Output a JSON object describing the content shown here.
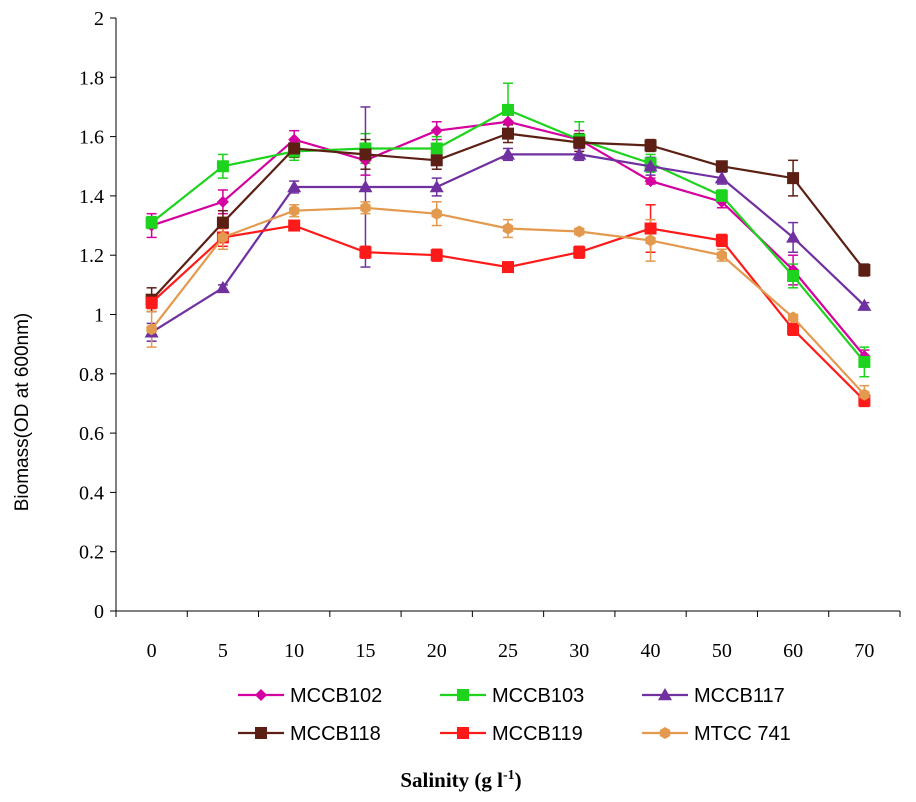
{
  "chart_data": {
    "type": "line",
    "title": "",
    "xlabel": "Salinity (g l",
    "xlabel_sup": "-1",
    "xlabel_end": ")",
    "ylabel": "Biomass(OD at 600nm)",
    "categories": [
      "0",
      "5",
      "10",
      "15",
      "20",
      "25",
      "30",
      "40",
      "50",
      "60",
      "70"
    ],
    "ylim": [
      0,
      2
    ],
    "yticks": [
      "0",
      "0.2",
      "0.4",
      "0.6",
      "0.8",
      "1",
      "1.2",
      "1.4",
      "1.6",
      "1.8",
      "2"
    ],
    "grid": false,
    "legend_position": "bottom",
    "series": [
      {
        "name": "MCCB102",
        "color": "#d4009f",
        "marker": "diamond",
        "values": [
          1.3,
          1.38,
          1.59,
          1.52,
          1.62,
          1.65,
          1.59,
          1.45,
          1.38,
          1.15,
          0.86
        ],
        "errors": [
          0.04,
          0.04,
          0.03,
          0.05,
          0.03,
          0.04,
          0.03,
          0.01,
          0.02,
          0.05,
          0.02
        ]
      },
      {
        "name": "MCCB103",
        "color": "#1ed31e",
        "marker": "square",
        "values": [
          1.31,
          1.5,
          1.55,
          1.56,
          1.56,
          1.69,
          1.59,
          1.51,
          1.4,
          1.13,
          0.84
        ],
        "errors": [
          0.02,
          0.04,
          0.03,
          0.05,
          0.04,
          0.09,
          0.06,
          0.03,
          0.02,
          0.04,
          0.05
        ]
      },
      {
        "name": "MCCB117",
        "color": "#7030a0",
        "marker": "triangle",
        "values": [
          0.94,
          1.09,
          1.43,
          1.43,
          1.43,
          1.54,
          1.54,
          1.5,
          1.46,
          1.26,
          1.03
        ],
        "errors": [
          0.03,
          0.01,
          0.02,
          0.27,
          0.03,
          0.02,
          0.02,
          0.03,
          0.02,
          0.05,
          0.01
        ]
      },
      {
        "name": "MCCB118",
        "color": "#5c1f14",
        "marker": "square",
        "values": [
          1.05,
          1.31,
          1.56,
          1.54,
          1.52,
          1.61,
          1.58,
          1.57,
          1.5,
          1.46,
          1.15
        ],
        "errors": [
          0.04,
          0.04,
          0.03,
          0.05,
          0.03,
          0.03,
          0.03,
          0.02,
          0.01,
          0.06,
          0.02
        ]
      },
      {
        "name": "MCCB119",
        "color": "#ff1a1a",
        "marker": "square",
        "values": [
          1.04,
          1.26,
          1.3,
          1.21,
          1.2,
          1.16,
          1.21,
          1.29,
          1.25,
          0.95,
          0.71
        ],
        "errors": [
          0.02,
          0.03,
          0.01,
          0.02,
          0.02,
          0.01,
          0.02,
          0.08,
          0.02,
          0.02,
          0.02
        ]
      },
      {
        "name": "MTCC 741",
        "color": "#e39a4e",
        "marker": "hexagon",
        "values": [
          0.95,
          1.26,
          1.35,
          1.36,
          1.34,
          1.29,
          1.28,
          1.25,
          1.2,
          0.99,
          0.73
        ],
        "errors": [
          0.06,
          0.04,
          0.02,
          0.02,
          0.04,
          0.03,
          0.01,
          0.07,
          0.02,
          0.01,
          0.03
        ]
      }
    ]
  }
}
